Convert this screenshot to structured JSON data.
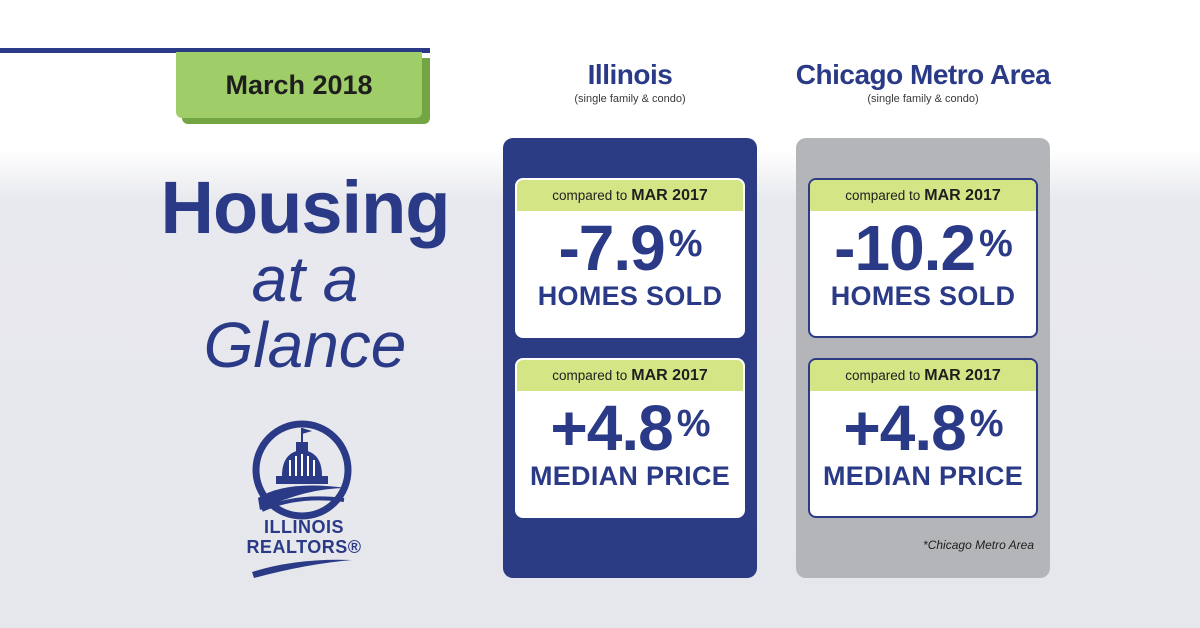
{
  "date_tab": {
    "label": "March 2018"
  },
  "headline": {
    "line1": "Housing",
    "line2": "at a",
    "line3": "Glance"
  },
  "logo": {
    "line1": "ILLINOIS",
    "line2": "REALTORS®",
    "icon": "capitol-dome-icon"
  },
  "columns": [
    {
      "name": "Illinois",
      "subtitle": "(single family & condo)",
      "color": "#2c3c84",
      "cards": [
        {
          "compare_prefix": "compared to",
          "compare_period": "MAR 2017",
          "value": "-7.9",
          "unit": "%",
          "label": "HOMES SOLD"
        },
        {
          "compare_prefix": "compared to",
          "compare_period": "MAR 2017",
          "value": "+4.8",
          "unit": "%",
          "label": "MEDIAN PRICE"
        }
      ]
    },
    {
      "name": "Chicago Metro Area",
      "subtitle": "(single family & condo)",
      "color": "#b4b5b9",
      "cards": [
        {
          "compare_prefix": "compared to",
          "compare_period": "MAR 2017",
          "value": "-10.2",
          "unit": "%",
          "label": "HOMES SOLD"
        },
        {
          "compare_prefix": "compared to",
          "compare_period": "MAR 2017",
          "value": "+4.8",
          "unit": "%",
          "label": "MEDIAN PRICE"
        }
      ],
      "footnote": "*Chicago Metro Area"
    }
  ],
  "colors": {
    "brand_blue": "#2a3a86",
    "accent_green": "#9fcd67",
    "compare_bar": "#d4e586"
  }
}
